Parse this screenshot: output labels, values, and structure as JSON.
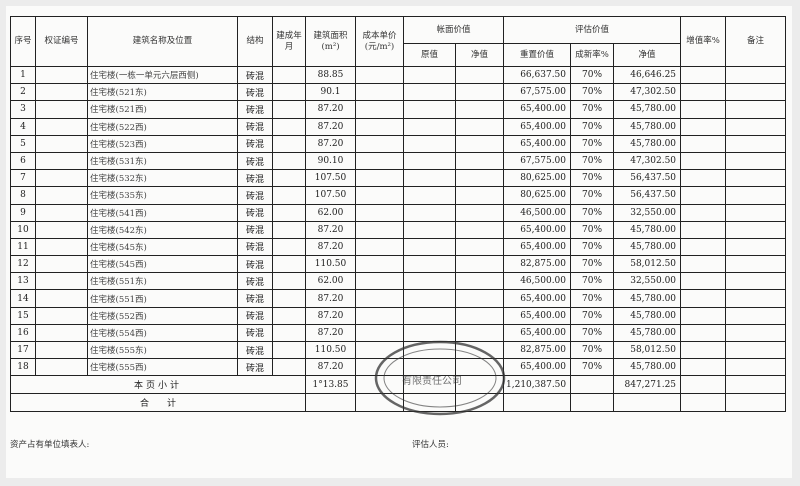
{
  "headers": {
    "seq": "序号",
    "cert_no": "权证编号",
    "name_location": "建筑名称及位置",
    "structure": "结构",
    "built": "建成年月",
    "area": "建筑面积(m²)",
    "unit_cost": "成本单价(元/m²)",
    "book_value": "帐面价值",
    "book_original": "原值",
    "book_net": "净值",
    "appraised_value": "评估价值",
    "replacement": "重置价值",
    "newness": "成新率%",
    "appraised_net": "净值",
    "increase_rate": "增值率%",
    "remarks": "备注"
  },
  "rows": [
    {
      "seq": "1",
      "name": "住宅楼(一栋一单元六层西侧)",
      "structure": "砖混",
      "area": "88.85",
      "replacement": "66,637.50",
      "newness": "70%",
      "net": "46,646.25"
    },
    {
      "seq": "2",
      "name": "住宅楼(521东)",
      "structure": "砖混",
      "area": "90.1",
      "replacement": "67,575.00",
      "newness": "70%",
      "net": "47,302.50"
    },
    {
      "seq": "3",
      "name": "住宅楼(521西)",
      "structure": "砖混",
      "area": "87.20",
      "replacement": "65,400.00",
      "newness": "70%",
      "net": "45,780.00"
    },
    {
      "seq": "4",
      "name": "住宅楼(522西)",
      "structure": "砖混",
      "area": "87.20",
      "replacement": "65,400.00",
      "newness": "70%",
      "net": "45,780.00"
    },
    {
      "seq": "5",
      "name": "住宅楼(523西)",
      "structure": "砖混",
      "area": "87.20",
      "replacement": "65,400.00",
      "newness": "70%",
      "net": "45,780.00"
    },
    {
      "seq": "6",
      "name": "住宅楼(531东)",
      "structure": "砖混",
      "area": "90.10",
      "replacement": "67,575.00",
      "newness": "70%",
      "net": "47,302.50"
    },
    {
      "seq": "7",
      "name": "住宅楼(532东)",
      "structure": "砖混",
      "area": "107.50",
      "replacement": "80,625.00",
      "newness": "70%",
      "net": "56,437.50"
    },
    {
      "seq": "8",
      "name": "住宅楼(535东)",
      "structure": "砖混",
      "area": "107.50",
      "replacement": "80,625.00",
      "newness": "70%",
      "net": "56,437.50"
    },
    {
      "seq": "9",
      "name": "住宅楼(541西)",
      "structure": "砖混",
      "area": "62.00",
      "replacement": "46,500.00",
      "newness": "70%",
      "net": "32,550.00"
    },
    {
      "seq": "10",
      "name": "住宅楼(542东)",
      "structure": "砖混",
      "area": "87.20",
      "replacement": "65,400.00",
      "newness": "70%",
      "net": "45,780.00"
    },
    {
      "seq": "11",
      "name": "住宅楼(545东)",
      "structure": "砖混",
      "area": "87.20",
      "replacement": "65,400.00",
      "newness": "70%",
      "net": "45,780.00"
    },
    {
      "seq": "12",
      "name": "住宅楼(545西)",
      "structure": "砖混",
      "area": "110.50",
      "replacement": "82,875.00",
      "newness": "70%",
      "net": "58,012.50"
    },
    {
      "seq": "13",
      "name": "住宅楼(551东)",
      "structure": "砖混",
      "area": "62.00",
      "replacement": "46,500.00",
      "newness": "70%",
      "net": "32,550.00"
    },
    {
      "seq": "14",
      "name": "住宅楼(551西)",
      "structure": "砖混",
      "area": "87.20",
      "replacement": "65,400.00",
      "newness": "70%",
      "net": "45,780.00"
    },
    {
      "seq": "15",
      "name": "住宅楼(552西)",
      "structure": "砖混",
      "area": "87.20",
      "replacement": "65,400.00",
      "newness": "70%",
      "net": "45,780.00"
    },
    {
      "seq": "16",
      "name": "住宅楼(554西)",
      "structure": "砖混",
      "area": "87.20",
      "replacement": "65,400.00",
      "newness": "70%",
      "net": "45,780.00"
    },
    {
      "seq": "17",
      "name": "住宅楼(555东)",
      "structure": "砖混",
      "area": "110.50",
      "replacement": "82,875.00",
      "newness": "70%",
      "net": "58,012.50"
    },
    {
      "seq": "18",
      "name": "住宅楼(555西)",
      "structure": "砖混",
      "area": "87.20",
      "replacement": "65,400.00",
      "newness": "70%",
      "net": "45,780.00"
    }
  ],
  "subtotal": {
    "label": "本页小计",
    "area": "1°13.85",
    "replacement": "1,210,387.50",
    "net": "847,271.25"
  },
  "total": {
    "label": "合　　计"
  },
  "footer": {
    "filler": "资产占有单位填表人:",
    "appraiser": "评估人员:"
  },
  "stamp_text": "有限责任公司"
}
